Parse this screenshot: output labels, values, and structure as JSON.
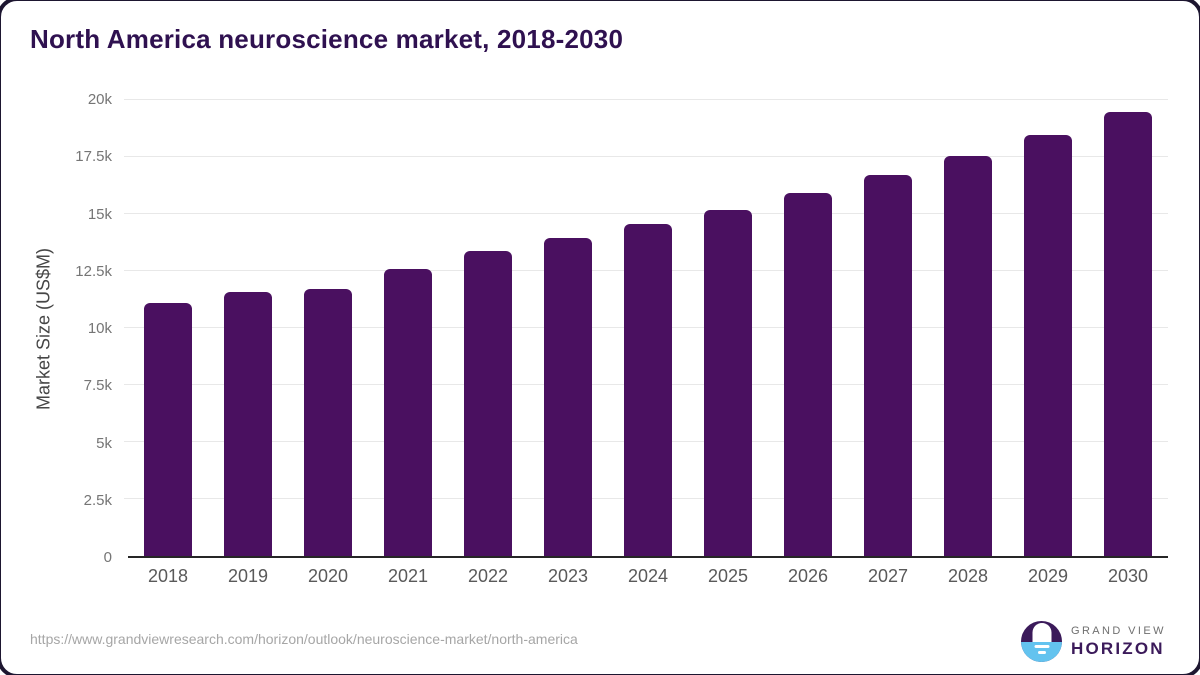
{
  "title": "North America neuroscience market, 2018-2030",
  "chart_data": {
    "type": "bar",
    "title": "North America neuroscience market, 2018-2030",
    "xlabel": "",
    "ylabel": "Market Size (US$M)",
    "categories": [
      "2018",
      "2019",
      "2020",
      "2021",
      "2022",
      "2023",
      "2024",
      "2025",
      "2026",
      "2027",
      "2028",
      "2029",
      "2030"
    ],
    "values": [
      11100,
      11560,
      11730,
      12580,
      13370,
      13950,
      14550,
      15170,
      15930,
      16730,
      17560,
      18460,
      19490
    ],
    "ylim": [
      0,
      20000
    ],
    "ytick_step": 2500,
    "ytick_labels": [
      "0",
      "2.5k",
      "5k",
      "7.5k",
      "10k",
      "12.5k",
      "15k",
      "17.5k",
      "20k"
    ],
    "grid": true,
    "legend": "none",
    "bar_color": "#4a1060"
  },
  "footer": {
    "source_url": "https://www.grandviewresearch.com/horizon/outlook/neuroscience-market/north-america"
  },
  "logo": {
    "line1": "GRAND VIEW",
    "line2": "HORIZON"
  },
  "colors": {
    "title": "#2f1150",
    "bar": "#4a1060",
    "grid": "#e8e8e8",
    "axis_line": "#262626",
    "ytick": "#757575",
    "xtick": "#595959",
    "axis_title": "#464646",
    "footer": "#a6a6a6",
    "logo_purple": "#3b1a5a",
    "logo_blue": "#63c3ef"
  }
}
